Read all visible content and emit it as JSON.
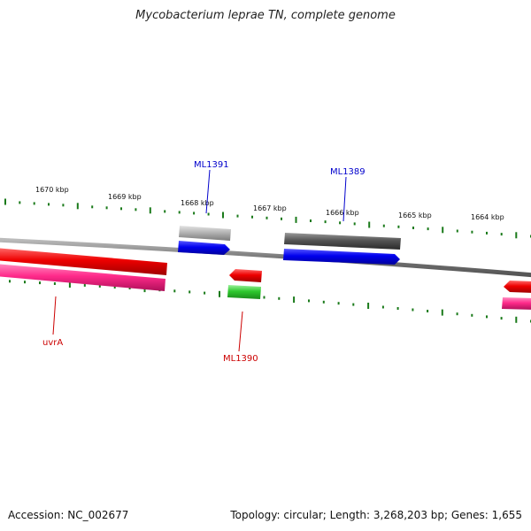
{
  "title": "Mycobacterium leprae TN, complete genome",
  "footer": {
    "accession": "Accession: NC_002677",
    "topology": "Topology: circular; Length: 3,268,203 bp; Genes: 1,655"
  },
  "ticks": [
    "1670 kbp",
    "1669 kbp",
    "1668 kbp",
    "1667 kbp",
    "1666 kbp",
    "1665 kbp",
    "1664 kbp"
  ],
  "gene_labels": {
    "ml1391": "ML1391",
    "ml1389": "ML1389",
    "ml1390": "ML1390",
    "uvra": "uvrA"
  },
  "colors": {
    "forward_cds": "#0000ee",
    "reverse_cds": "#ee0000",
    "forward_gene": "#999999",
    "reverse_gene": "#ff2a8a",
    "rna_gene": "#2ec82e",
    "dark_gene": "#555555",
    "backbone": "#888888",
    "tick": "#1a7a1a",
    "label_forward": "#0000cc",
    "label_reverse": "#cc0000"
  }
}
